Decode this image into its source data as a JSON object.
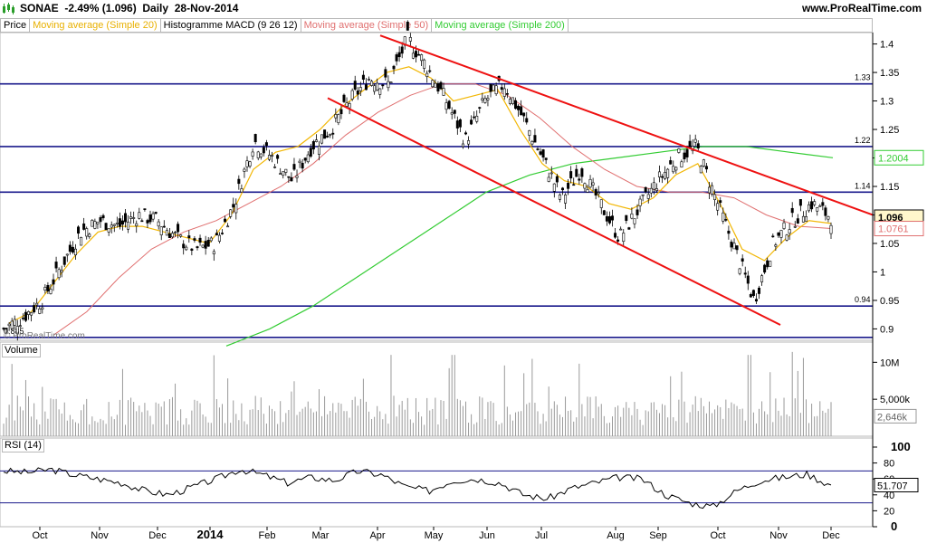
{
  "header": {
    "ticker_text": "SONAE  -2.49% (1.096)  Daily  28-Nov-2014",
    "site": "www.ProRealTime.com",
    "icon": "candlestick-chart-icon"
  },
  "legend": [
    {
      "label": "Price",
      "color": "#000000"
    },
    {
      "label": "Moving average (Simple 20)",
      "color": "#f2b705"
    },
    {
      "label": "Histogramme MACD (9 26 12)",
      "color": "#000000"
    },
    {
      "label": "Moving average (Simple 50)",
      "color": "#e07070"
    },
    {
      "label": "Moving average (Simple 200)",
      "color": "#33cc33"
    }
  ],
  "watermark": "© ProRealTime.com",
  "chart_data": [
    {
      "type": "line",
      "panel": "price",
      "x_tick_labels": [
        "Oct",
        "Nov",
        "Dec",
        "2014",
        "Feb",
        "Mar",
        "Apr",
        "May",
        "Jun",
        "Jul",
        "Aug",
        "Sep",
        "Oct",
        "Nov",
        "Dec"
      ],
      "y_tick_labels": [
        "1.4",
        "1.35",
        "1.3",
        "1.25",
        "1.2",
        "1.15",
        "1.1",
        "1.05",
        "1",
        "0.95",
        "0.9"
      ],
      "ylim": [
        0.88,
        1.42
      ],
      "horizontal_levels": [
        {
          "value": 1.33,
          "label": "1.33"
        },
        {
          "value": 1.22,
          "label": "1.22"
        },
        {
          "value": 1.14,
          "label": "1.14"
        },
        {
          "value": 0.94,
          "label": "0.94"
        },
        {
          "value": 0.885,
          "label": "0.885"
        }
      ],
      "value_badges": [
        {
          "label": "1.2004",
          "color": "#33cc33"
        },
        {
          "label": "1.096",
          "color": "#000000"
        },
        {
          "label": "1.0761",
          "color": "#e07070"
        }
      ],
      "trendlines": [
        {
          "from": [
            "Apr",
            1.415
          ],
          "to": [
            "Dec",
            1.1
          ],
          "color": "#ee1111"
        },
        {
          "from": [
            "Mar",
            1.305
          ],
          "to": [
            "Nov",
            0.907
          ],
          "color": "#ee1111"
        }
      ],
      "series": [
        {
          "name": "Price",
          "color": "#000000",
          "values": [
            0.9,
            0.92,
            0.95,
            1.01,
            1.07,
            1.09,
            1.08,
            1.1,
            1.09,
            1.06,
            1.04,
            1.05,
            1.12,
            1.23,
            1.2,
            1.16,
            1.22,
            1.25,
            1.3,
            1.34,
            1.33,
            1.41,
            1.36,
            1.3,
            1.23,
            1.3,
            1.33,
            1.27,
            1.2,
            1.13,
            1.18,
            1.12,
            1.06,
            1.11,
            1.16,
            1.2,
            1.22,
            1.13,
            1.04,
            0.95,
            1.05,
            1.09,
            1.12,
            1.096
          ]
        },
        {
          "name": "Moving average (Simple 20)",
          "color": "#f2b705",
          "values": [
            0.91,
            0.93,
            0.98,
            1.03,
            1.07,
            1.08,
            1.08,
            1.07,
            1.06,
            1.05,
            1.1,
            1.18,
            1.21,
            1.22,
            1.25,
            1.29,
            1.32,
            1.35,
            1.36,
            1.34,
            1.3,
            1.31,
            1.32,
            1.25,
            1.19,
            1.16,
            1.15,
            1.12,
            1.11,
            1.13,
            1.17,
            1.19,
            1.12,
            1.04,
            1.02,
            1.06,
            1.09,
            1.085
          ]
        },
        {
          "name": "Moving average (Simple 50)",
          "color": "#e07070",
          "values": [
            0.89,
            0.93,
            0.99,
            1.04,
            1.07,
            1.09,
            1.12,
            1.15,
            1.19,
            1.24,
            1.28,
            1.31,
            1.33,
            1.33,
            1.31,
            1.27,
            1.22,
            1.18,
            1.15,
            1.14,
            1.14,
            1.13,
            1.1,
            1.08,
            1.0761
          ]
        },
        {
          "name": "Moving average (Simple 200)",
          "color": "#33cc33",
          "values": [
            0.87,
            0.9,
            0.94,
            0.99,
            1.04,
            1.09,
            1.14,
            1.17,
            1.19,
            1.2,
            1.21,
            1.22,
            1.22,
            1.21,
            1.2004
          ]
        }
      ]
    },
    {
      "type": "bar",
      "panel": "volume",
      "title": "Volume",
      "y_tick_labels": [
        "10M",
        "5,000k"
      ],
      "value_badge": "2,646k",
      "note": "daily volume bars, mostly 2M-6M with spikes near Apr, Jun, Oct"
    },
    {
      "type": "line",
      "panel": "rsi",
      "title": "RSI (14)",
      "y_tick_labels": [
        "100",
        "80",
        "60",
        "40",
        "20",
        "0"
      ],
      "ylim": [
        0,
        100
      ],
      "reference_levels": [
        70,
        30
      ],
      "value_badge": "51.707",
      "series": [
        {
          "name": "RSI (14)",
          "color": "#000000",
          "values": [
            70,
            68,
            72,
            65,
            60,
            55,
            45,
            40,
            50,
            60,
            72,
            65,
            55,
            62,
            58,
            70,
            65,
            50,
            45,
            58,
            60,
            55,
            40,
            35,
            48,
            55,
            62,
            60,
            40,
            30,
            25,
            45,
            58,
            62,
            66,
            51.707
          ]
        }
      ]
    }
  ]
}
